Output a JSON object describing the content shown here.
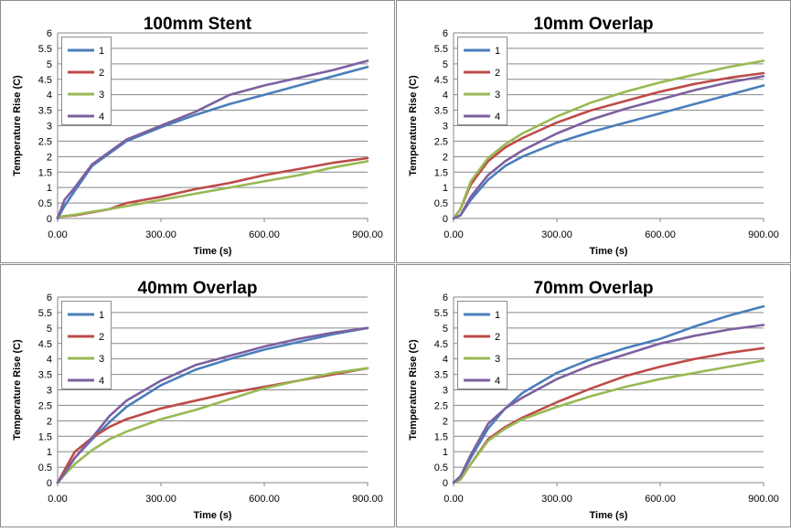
{
  "colors": {
    "series": [
      "#4a7ebb",
      "#be4b48",
      "#98b954",
      "#7d60a0"
    ],
    "grid": "#878787",
    "panel_border": "#8c8c8c",
    "text": "#000000"
  },
  "chart_data": [
    {
      "type": "line",
      "title": "100mm Stent",
      "xlabel": "Time (s)",
      "ylabel": "Temperature Rise (C)",
      "xlim": [
        0,
        900
      ],
      "ylim": [
        0,
        6
      ],
      "xticks": [
        "0.00",
        "300.00",
        "600.00",
        "900.00"
      ],
      "yticks": [
        "0",
        "0.5",
        "1",
        "1.5",
        "2",
        "2.5",
        "3",
        "3.5",
        "4",
        "4.5",
        "5",
        "5.5",
        "6"
      ],
      "legend_position": "top-left",
      "series": [
        {
          "name": "1",
          "x": [
            0,
            20,
            50,
            100,
            150,
            200,
            300,
            400,
            500,
            600,
            700,
            800,
            900
          ],
          "y": [
            0,
            0.4,
            0.9,
            1.7,
            2.1,
            2.5,
            2.95,
            3.35,
            3.7,
            4.0,
            4.3,
            4.6,
            4.9
          ]
        },
        {
          "name": "2",
          "x": [
            0,
            50,
            100,
            150,
            200,
            300,
            400,
            500,
            600,
            700,
            800,
            900
          ],
          "y": [
            0.05,
            0.1,
            0.2,
            0.3,
            0.5,
            0.7,
            0.95,
            1.15,
            1.4,
            1.6,
            1.8,
            1.95
          ]
        },
        {
          "name": "3",
          "x": [
            0,
            50,
            100,
            150,
            200,
            300,
            400,
            500,
            600,
            700,
            800,
            900
          ],
          "y": [
            0.05,
            0.12,
            0.22,
            0.3,
            0.4,
            0.6,
            0.8,
            1.0,
            1.2,
            1.4,
            1.65,
            1.85
          ]
        },
        {
          "name": "4",
          "x": [
            0,
            20,
            50,
            100,
            150,
            200,
            300,
            400,
            500,
            600,
            700,
            800,
            900
          ],
          "y": [
            0,
            0.6,
            1.0,
            1.75,
            2.15,
            2.55,
            3.0,
            3.45,
            4.0,
            4.3,
            4.55,
            4.8,
            5.1
          ]
        }
      ]
    },
    {
      "type": "line",
      "title": "10mm Overlap",
      "xlabel": "Time (s)",
      "ylabel": "Temperature Rise (C)",
      "xlim": [
        0,
        900
      ],
      "ylim": [
        0,
        6
      ],
      "xticks": [
        "0.00",
        "300.00",
        "600.00",
        "900.00"
      ],
      "yticks": [
        "0",
        "0.5",
        "1",
        "1.5",
        "2",
        "2.5",
        "3",
        "3.5",
        "4",
        "4.5",
        "5",
        "5.5",
        "6"
      ],
      "legend_position": "top-left",
      "series": [
        {
          "name": "1",
          "x": [
            0,
            20,
            50,
            100,
            150,
            200,
            300,
            400,
            500,
            600,
            700,
            800,
            900
          ],
          "y": [
            0,
            0.1,
            0.6,
            1.25,
            1.7,
            2.0,
            2.45,
            2.8,
            3.1,
            3.4,
            3.7,
            4.0,
            4.3
          ]
        },
        {
          "name": "2",
          "x": [
            0,
            20,
            50,
            100,
            150,
            200,
            300,
            400,
            500,
            600,
            700,
            800,
            900
          ],
          "y": [
            0,
            0.3,
            1.1,
            1.85,
            2.3,
            2.6,
            3.1,
            3.5,
            3.8,
            4.1,
            4.35,
            4.55,
            4.7
          ]
        },
        {
          "name": "3",
          "x": [
            0,
            20,
            50,
            100,
            150,
            200,
            300,
            400,
            500,
            600,
            700,
            800,
            900
          ],
          "y": [
            0,
            0.3,
            1.2,
            1.95,
            2.4,
            2.75,
            3.3,
            3.75,
            4.1,
            4.4,
            4.65,
            4.9,
            5.1
          ]
        },
        {
          "name": "4",
          "x": [
            0,
            20,
            50,
            100,
            150,
            200,
            300,
            400,
            500,
            600,
            700,
            800,
            900
          ],
          "y": [
            0,
            0.1,
            0.7,
            1.4,
            1.85,
            2.2,
            2.75,
            3.2,
            3.55,
            3.85,
            4.15,
            4.4,
            4.6
          ]
        }
      ]
    },
    {
      "type": "line",
      "title": "40mm Overlap",
      "xlabel": "Time (s)",
      "ylabel": "Temperature Rise (C)",
      "xlim": [
        0,
        900
      ],
      "ylim": [
        0,
        6
      ],
      "xticks": [
        "0.00",
        "300.00",
        "600.00",
        "900.00"
      ],
      "yticks": [
        "0",
        "0.5",
        "1",
        "1.5",
        "2",
        "2.5",
        "3",
        "3.5",
        "4",
        "4.5",
        "5",
        "5.5",
        "6"
      ],
      "legend_position": "top-left",
      "series": [
        {
          "name": "1",
          "x": [
            0,
            20,
            50,
            100,
            150,
            200,
            300,
            400,
            500,
            600,
            700,
            800,
            900
          ],
          "y": [
            0,
            0.3,
            0.8,
            1.4,
            1.95,
            2.45,
            3.15,
            3.65,
            4.0,
            4.3,
            4.55,
            4.8,
            5.0
          ]
        },
        {
          "name": "2",
          "x": [
            0,
            20,
            50,
            100,
            150,
            200,
            300,
            400,
            500,
            600,
            700,
            800,
            900
          ],
          "y": [
            0,
            0.4,
            1.0,
            1.45,
            1.8,
            2.05,
            2.4,
            2.65,
            2.9,
            3.1,
            3.3,
            3.5,
            3.7
          ]
        },
        {
          "name": "3",
          "x": [
            0,
            20,
            50,
            100,
            150,
            200,
            300,
            400,
            500,
            600,
            700,
            800,
            900
          ],
          "y": [
            0,
            0.25,
            0.6,
            1.05,
            1.4,
            1.65,
            2.05,
            2.35,
            2.7,
            3.05,
            3.3,
            3.55,
            3.7
          ]
        },
        {
          "name": "4",
          "x": [
            0,
            20,
            50,
            100,
            150,
            200,
            300,
            400,
            500,
            600,
            700,
            800,
            900
          ],
          "y": [
            0,
            0.3,
            0.8,
            1.45,
            2.15,
            2.65,
            3.3,
            3.8,
            4.1,
            4.4,
            4.65,
            4.85,
            5.0
          ]
        }
      ]
    },
    {
      "type": "line",
      "title": "70mm Overlap",
      "xlabel": "Time (s)",
      "ylabel": "Temperature Rise (C)",
      "xlim": [
        0,
        900
      ],
      "ylim": [
        0,
        6
      ],
      "xticks": [
        "0.00",
        "300.00",
        "600.00",
        "900.00"
      ],
      "yticks": [
        "0",
        "0.5",
        "1",
        "1.5",
        "2",
        "2.5",
        "3",
        "3.5",
        "4",
        "4.5",
        "5",
        "5.5",
        "6"
      ],
      "legend_position": "top-left",
      "series": [
        {
          "name": "1",
          "x": [
            0,
            20,
            50,
            100,
            150,
            200,
            300,
            400,
            500,
            600,
            700,
            800,
            900
          ],
          "y": [
            0,
            0.2,
            0.8,
            1.75,
            2.4,
            2.9,
            3.55,
            4.0,
            4.35,
            4.65,
            5.05,
            5.4,
            5.7
          ]
        },
        {
          "name": "2",
          "x": [
            0,
            20,
            50,
            100,
            150,
            200,
            300,
            400,
            500,
            600,
            700,
            800,
            900
          ],
          "y": [
            0,
            0.1,
            0.6,
            1.4,
            1.8,
            2.1,
            2.6,
            3.05,
            3.45,
            3.75,
            4.0,
            4.2,
            4.35
          ]
        },
        {
          "name": "3",
          "x": [
            0,
            20,
            50,
            100,
            150,
            200,
            300,
            400,
            500,
            600,
            700,
            800,
            900
          ],
          "y": [
            0,
            0.1,
            0.6,
            1.35,
            1.75,
            2.05,
            2.45,
            2.8,
            3.1,
            3.35,
            3.55,
            3.75,
            3.95
          ]
        },
        {
          "name": "4",
          "x": [
            0,
            20,
            50,
            100,
            150,
            200,
            300,
            400,
            500,
            600,
            700,
            800,
            900
          ],
          "y": [
            0,
            0.2,
            0.9,
            1.9,
            2.4,
            2.75,
            3.35,
            3.8,
            4.15,
            4.5,
            4.75,
            4.95,
            5.1
          ]
        }
      ]
    }
  ]
}
